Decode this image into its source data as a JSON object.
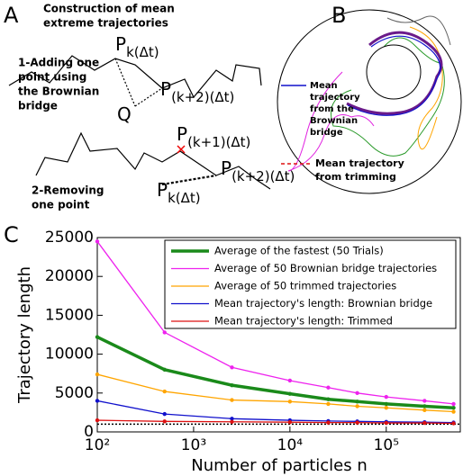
{
  "panel_a": {
    "letter": "A",
    "title_lines": [
      "Construction of mean",
      "extreme trajectories"
    ],
    "step1_lines": [
      "1-Adding one",
      "point using",
      "the Brownian",
      "bridge"
    ],
    "step2_lines": [
      "2-Removing",
      "one point"
    ],
    "points": [
      {
        "base": "P",
        "sub": "k(Δt)"
      },
      {
        "base": "Q",
        "sub": ""
      },
      {
        "base": "P",
        "sub": "(k+2)(Δt)"
      },
      {
        "base": "P",
        "sub": "(k+1)(Δt)"
      },
      {
        "base": "P",
        "sub": "(k+2)(Δt)"
      },
      {
        "base": "P",
        "sub": "k(Δt)"
      }
    ]
  },
  "panel_b": {
    "letter": "B",
    "legend_brownian_lines": [
      "Mean",
      "trajectory",
      "from the",
      "Brownian",
      "bridge"
    ],
    "legend_trimming_lines": [
      "Mean trajectory",
      "from trimming"
    ]
  },
  "chart_data": {
    "type": "line",
    "letter": "C",
    "x_label": "Number of particles n",
    "y_label": "Trajectory length",
    "log_x": true,
    "x": [
      100,
      500,
      2500,
      10000,
      25000,
      50000,
      100000,
      250000,
      500000
    ],
    "xlim": [
      100,
      600000
    ],
    "xticks": [
      {
        "value": 100,
        "label": "10²"
      },
      {
        "value": 1000,
        "label": "10³"
      },
      {
        "value": 10000,
        "label": "10⁴"
      },
      {
        "value": 100000,
        "label": "10⁵"
      }
    ],
    "ylim": [
      0,
      25000
    ],
    "yticks": [
      0,
      5000,
      10000,
      15000,
      20000,
      25000
    ],
    "reference_y": 1000,
    "series": [
      {
        "name": "Average of the fastest (50 Trials)",
        "color": "#1a8a1a",
        "width": 3.5,
        "values": [
          12200,
          8000,
          6000,
          4900,
          4200,
          3900,
          3600,
          3300,
          3100
        ]
      },
      {
        "name": "Average of 50 Brownian bridge trajectories",
        "color": "#ee22ee",
        "width": 1.3,
        "values": [
          24500,
          12800,
          8300,
          6600,
          5700,
          5000,
          4500,
          4000,
          3600
        ]
      },
      {
        "name": "Average of 50 trimmed trajectories",
        "color": "#ffa500",
        "width": 1.3,
        "values": [
          7400,
          5200,
          4100,
          3900,
          3600,
          3300,
          3100,
          2800,
          2600
        ]
      },
      {
        "name": "Mean trajectory's length: Brownian bridge",
        "color": "#1010cc",
        "width": 1.3,
        "values": [
          4000,
          2300,
          1700,
          1500,
          1400,
          1350,
          1300,
          1250,
          1200
        ]
      },
      {
        "name": "Mean trajectory's length: Trimmed",
        "color": "#dd1111",
        "width": 1.3,
        "values": [
          1500,
          1350,
          1300,
          1250,
          1200,
          1200,
          1150,
          1150,
          1100
        ]
      }
    ]
  }
}
